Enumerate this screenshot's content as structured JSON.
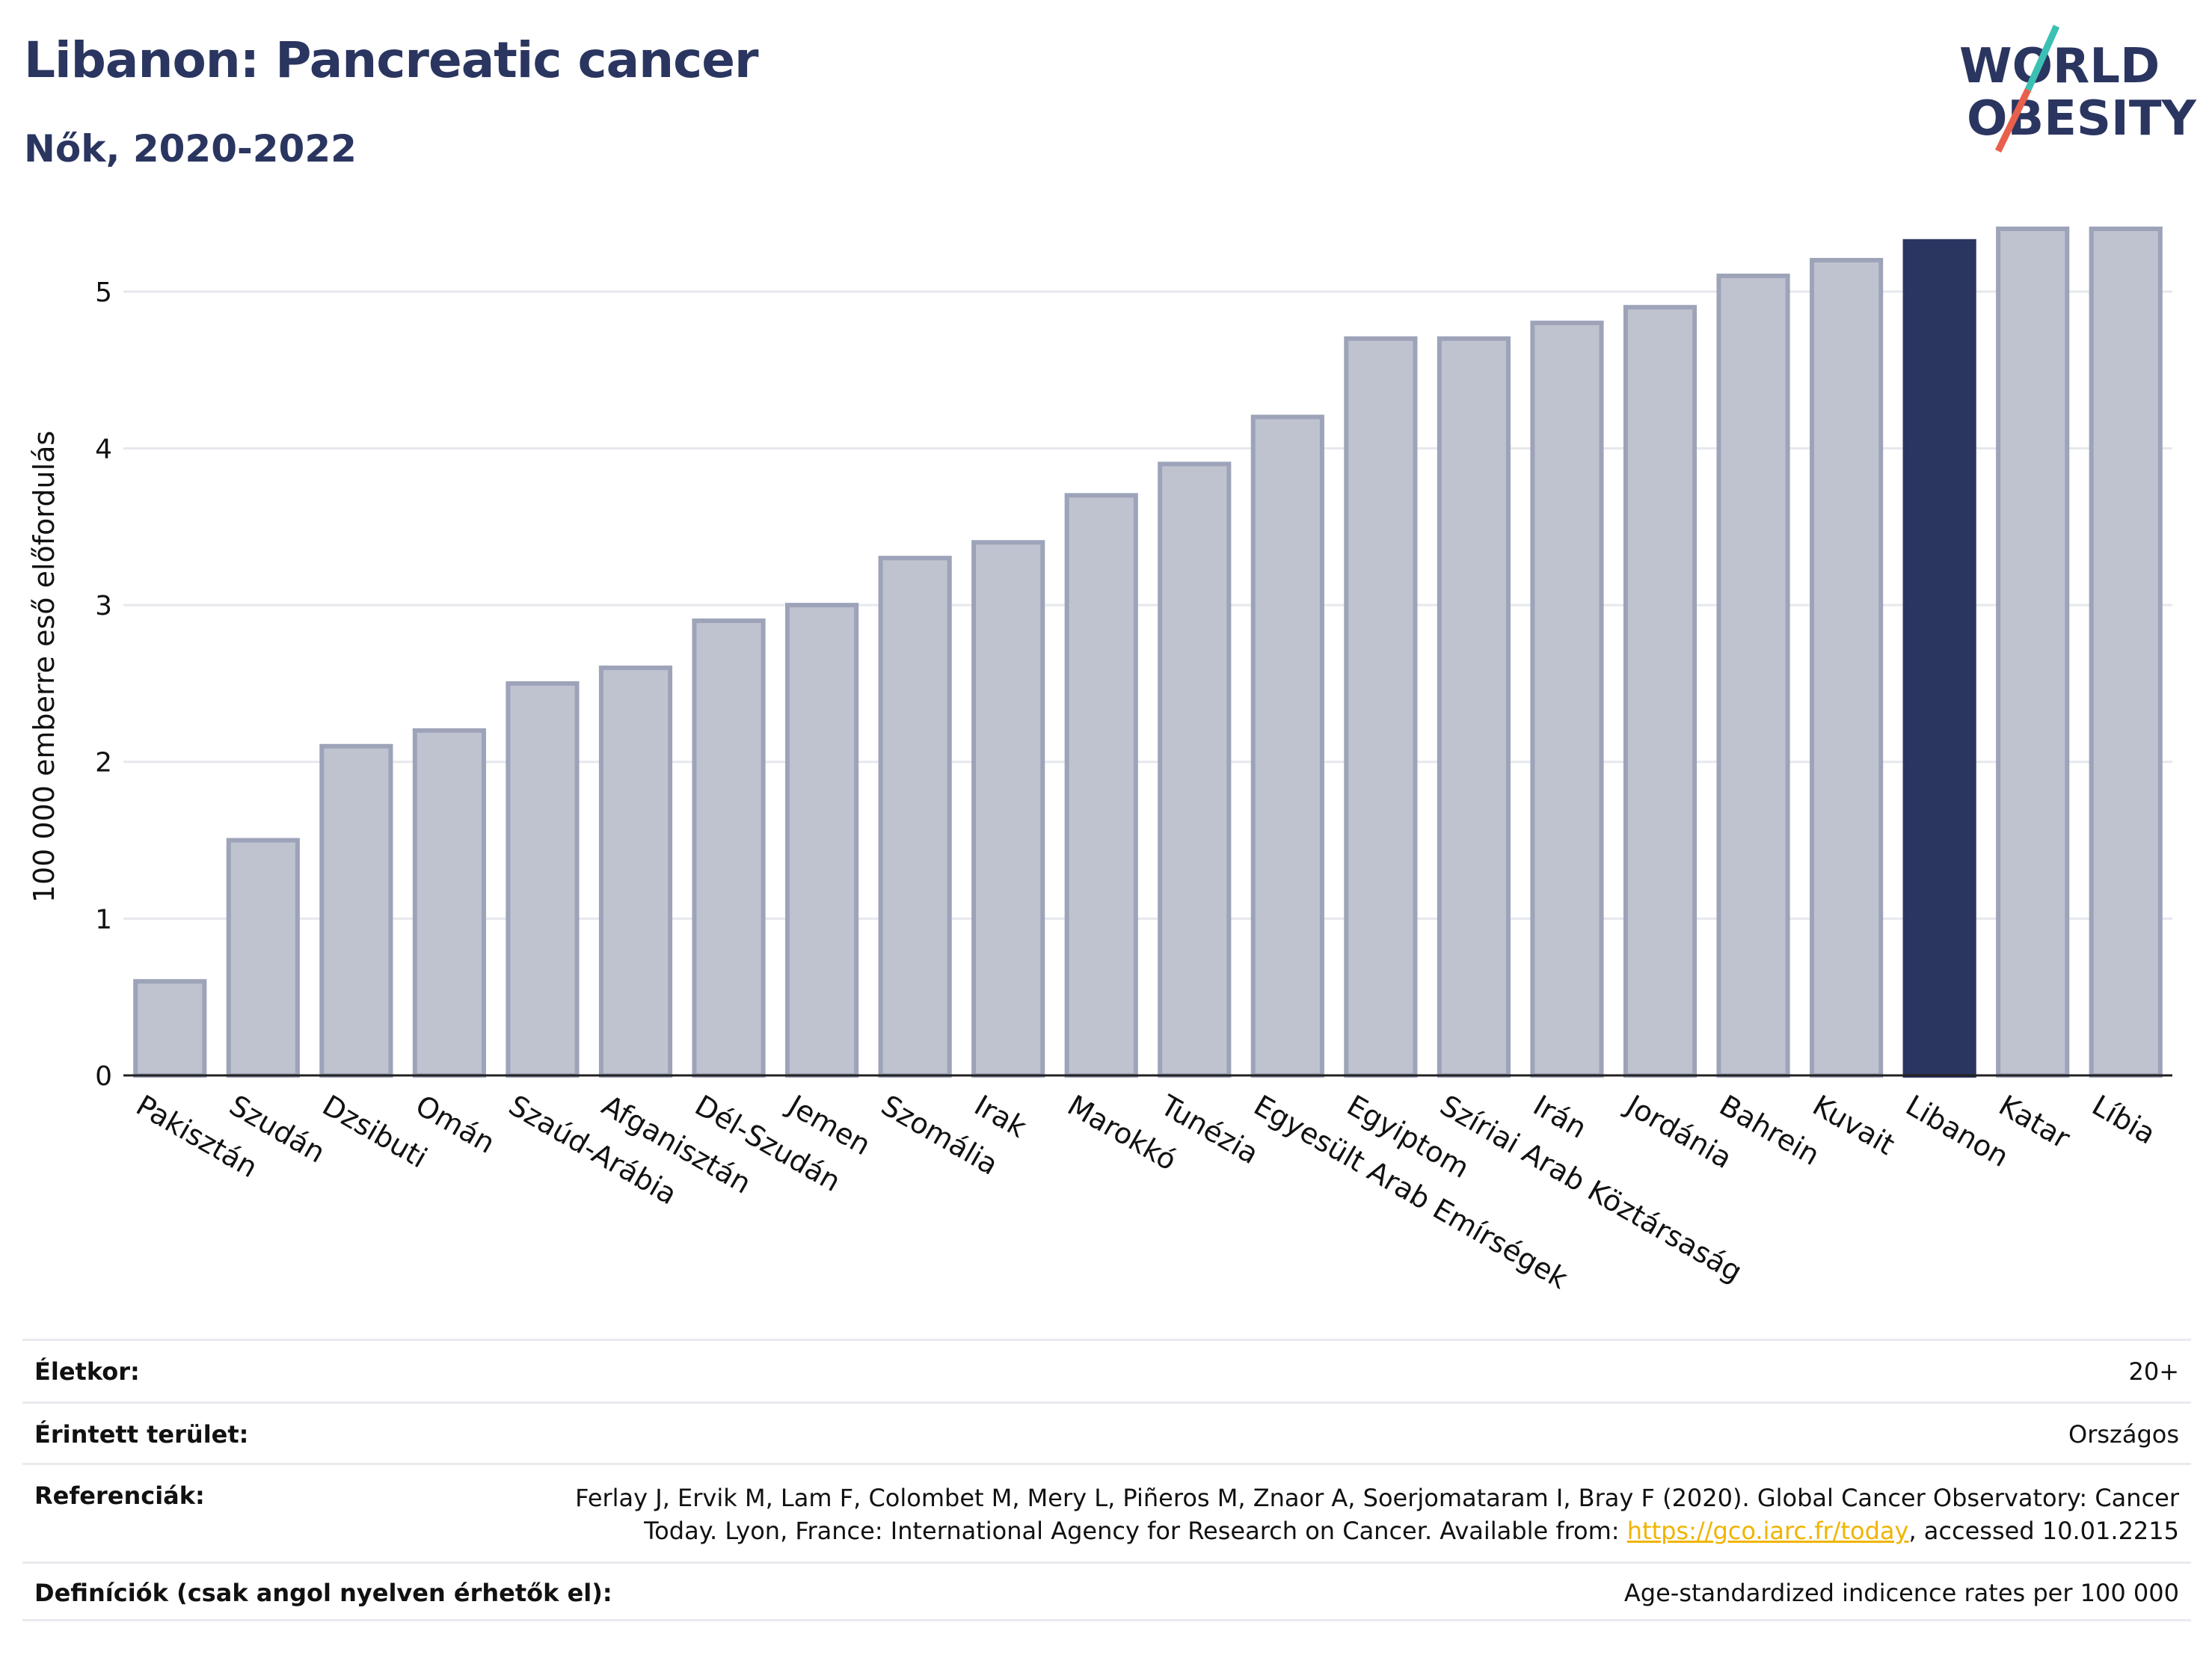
{
  "title": "Libanon: Pancreatic cancer",
  "subtitle": "Nők, 2020-2022",
  "logo": {
    "line1": "WORLD",
    "line2": "OBESITY",
    "colors": {
      "text": "#2a3560",
      "slash_top": "#3cc0b4",
      "slash_bottom": "#e8604c"
    }
  },
  "colors": {
    "bar": "#bfc3d0",
    "bar_edge": "#9da3b8",
    "highlight": "#2a3560",
    "grid": "#e6e8ee"
  },
  "chart_data": {
    "type": "bar",
    "ylabel": "100 000 emberre eső előfordulás",
    "xlabel": "",
    "ylim": [
      0,
      5.5
    ],
    "yticks": [
      0,
      1,
      2,
      3,
      4,
      5
    ],
    "highlight": "Libanon",
    "categories": [
      "Pakisztán",
      "Szudán",
      "Dzsibuti",
      "Omán",
      "Szaúd-Arábia",
      "Afganisztán",
      "Dél-Szudán",
      "Jemen",
      "Szomália",
      "Irak",
      "Marokkó",
      "Tunézia",
      "Egyesült Arab Emírségek",
      "Egyiptom",
      "Szíriai Arab Köztársaság",
      "Irán",
      "Jordánia",
      "Bahrein",
      "Kuvait",
      "Libanon",
      "Katar",
      "Líbia"
    ],
    "values": [
      0.6,
      1.5,
      2.1,
      2.2,
      2.5,
      2.6,
      2.9,
      3.0,
      3.3,
      3.4,
      3.7,
      3.9,
      4.2,
      4.7,
      4.7,
      4.8,
      4.9,
      5.1,
      5.2,
      5.32,
      5.4,
      5.4
    ]
  },
  "meta": {
    "age_label": "Életkor:",
    "age_value": "20+",
    "area_label": "Érintett terület:",
    "area_value": "Országos",
    "ref_label": "Referenciák:",
    "ref_line1": "Ferlay J, Ervik M, Lam F, Colombet M, Mery L, Piñeros M, Znaor A, Soerjomataram I, Bray F (2020). Global Cancer Observatory: Cancer",
    "ref_line2_pre": "Today. Lyon, France: International Agency for Research on Cancer. Available from: ",
    "ref_link": "https://gco.iarc.fr/today",
    "ref_line2_post": ", accessed 10.01.2215",
    "def_label": "Definíciók (csak angol nyelven érhetők el):",
    "def_value": "Age-standardized indicence rates per 100 000"
  }
}
